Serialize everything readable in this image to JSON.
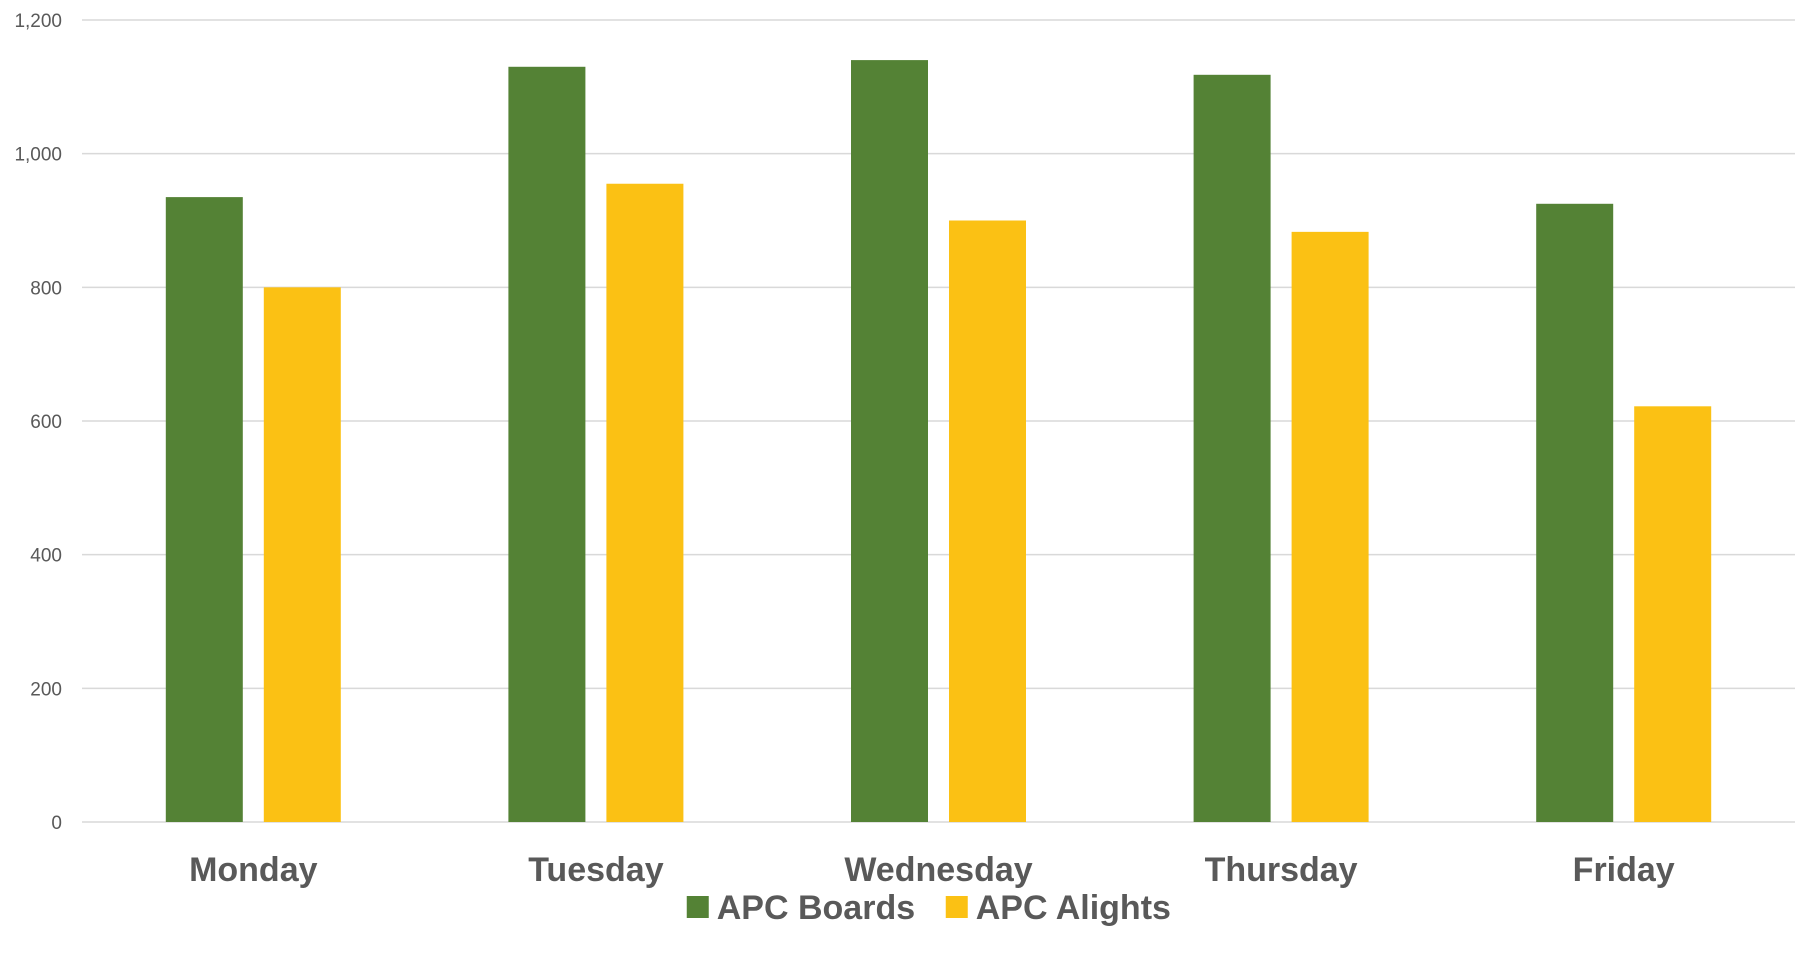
{
  "chart_data": {
    "type": "bar",
    "title": "",
    "xlabel": "",
    "ylabel": "",
    "categories": [
      "Monday",
      "Tuesday",
      "Wednesday",
      "Thursday",
      "Friday"
    ],
    "series": [
      {
        "name": "APC Boards",
        "color": "#548235",
        "values": [
          935,
          1130,
          1140,
          1118,
          925
        ]
      },
      {
        "name": "APC Alights",
        "color": "#FBC114",
        "values": [
          800,
          955,
          900,
          883,
          622
        ]
      }
    ],
    "ylim": [
      0,
      1200
    ],
    "yticks": [
      0,
      200,
      400,
      600,
      800,
      1000,
      1200
    ],
    "ytick_labels": [
      "0",
      "200",
      "400",
      "600",
      "800",
      "1,000",
      "1,200"
    ],
    "grid": true,
    "legend_position": "bottom"
  }
}
